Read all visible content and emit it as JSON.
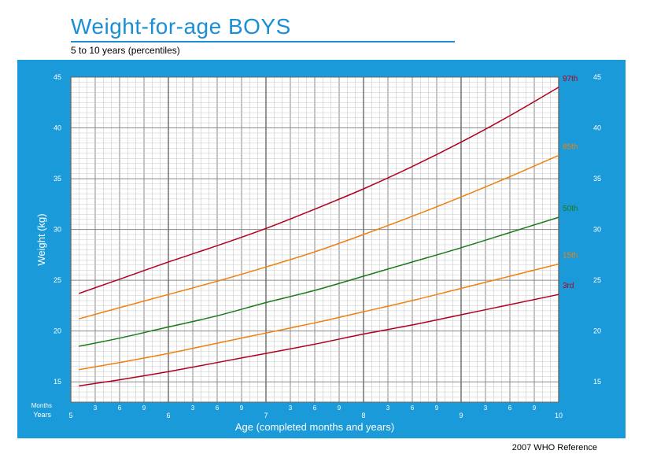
{
  "header": {
    "title": "Weight-for-age  BOYS",
    "subtitle": "5 to 10 years (percentiles)"
  },
  "footer": {
    "reference": "2007 WHO Reference"
  },
  "colors": {
    "brand_blue": "#1a9ad8",
    "grid_minor": "#c8c8c8",
    "grid_major": "#8a8a8a"
  },
  "chart_data": {
    "type": "line",
    "xlabel": "Age (completed months and years)",
    "ylabel": "Weight (kg)",
    "xlim": [
      5,
      10
    ],
    "ylim": [
      13,
      45
    ],
    "x_unit": "years",
    "grid": true,
    "months_row_label": "Months",
    "years_row_label": "Years",
    "x_year_ticks": [
      "5",
      "6",
      "7",
      "8",
      "9",
      "10"
    ],
    "x_month_ticks": [
      "3",
      "6",
      "9"
    ],
    "y_ticks": [
      "15",
      "20",
      "25",
      "30",
      "35",
      "40",
      "45"
    ],
    "x": [
      5.083,
      5.5,
      6.0,
      6.5,
      7.0,
      7.5,
      8.0,
      8.5,
      9.0,
      9.5,
      10.0
    ],
    "series": [
      {
        "name": "97th",
        "color": "#b0001e",
        "values": [
          23.7,
          25.1,
          26.8,
          28.4,
          30.1,
          32.0,
          34.0,
          36.2,
          38.6,
          41.2,
          44.0
        ]
      },
      {
        "name": "85th",
        "color": "#f08010",
        "values": [
          21.2,
          22.3,
          23.6,
          24.9,
          26.3,
          27.8,
          29.5,
          31.3,
          33.2,
          35.2,
          37.3
        ]
      },
      {
        "name": "50th",
        "color": "#1a7a1a",
        "values": [
          18.5,
          19.3,
          20.4,
          21.5,
          22.8,
          24.0,
          25.4,
          26.8,
          28.2,
          29.7,
          31.2
        ]
      },
      {
        "name": "15th",
        "color": "#f08010",
        "values": [
          16.2,
          16.9,
          17.8,
          18.8,
          19.8,
          20.8,
          21.9,
          23.0,
          24.2,
          25.4,
          26.6
        ]
      },
      {
        "name": "3rd",
        "color": "#b0001e",
        "values": [
          14.6,
          15.2,
          16.0,
          16.9,
          17.8,
          18.7,
          19.7,
          20.6,
          21.6,
          22.6,
          23.6
        ]
      }
    ]
  }
}
